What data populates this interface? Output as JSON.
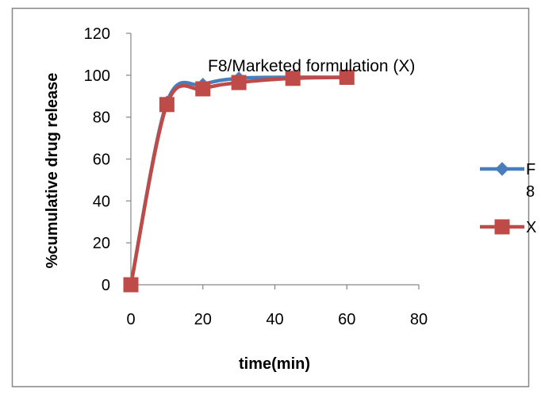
{
  "chart_data": {
    "type": "line",
    "title": "F8/Marketed formulation (X)",
    "xlabel": "time(min)",
    "ylabel": "%cumulative drug release",
    "xlim": [
      0,
      80
    ],
    "ylim": [
      0,
      120
    ],
    "xticks": [
      0,
      20,
      40,
      60,
      80
    ],
    "yticks": [
      0,
      20,
      40,
      60,
      80,
      100,
      120
    ],
    "grid": false,
    "legend_position": "right",
    "smoothed": true,
    "series": [
      {
        "name": "F8",
        "legend_label_lines": [
          "F",
          "8"
        ],
        "marker": "diamond",
        "color": "#4A7EBB",
        "x": [
          0,
          10,
          20,
          30,
          45,
          60
        ],
        "y": [
          0,
          87,
          95.5,
          98.5,
          99,
          99
        ]
      },
      {
        "name": "X",
        "legend_label_lines": [
          "X"
        ],
        "marker": "square",
        "color": "#BE4B48",
        "x": [
          0,
          10,
          20,
          30,
          45,
          60
        ],
        "y": [
          0,
          86,
          93.5,
          96.5,
          98.5,
          99
        ]
      }
    ]
  }
}
